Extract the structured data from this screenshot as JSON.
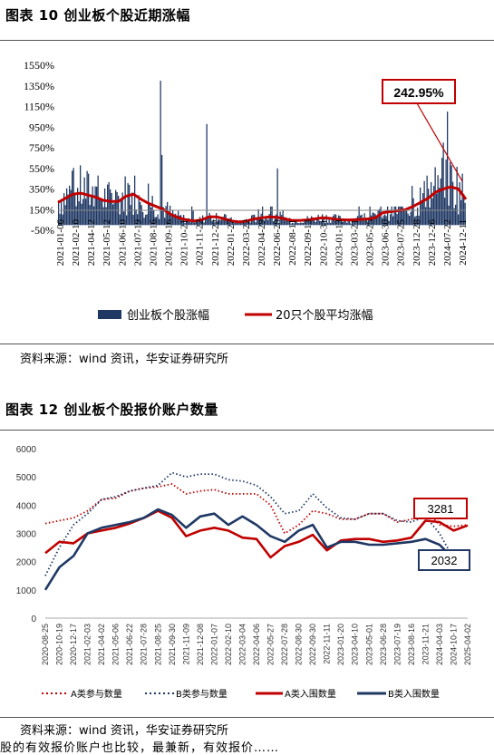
{
  "chart10": {
    "title": "图表 10 创业板个股近期涨幅",
    "source": "资料来源：wind 资讯，华安证券研究所",
    "annotation": "242.95%",
    "chart_data": {
      "type": "bar+line",
      "ylim": [
        -50,
        1550
      ],
      "yticks": [
        "1550%",
        "1350%",
        "1150%",
        "950%",
        "750%",
        "550%",
        "350%",
        "150%",
        "-50%"
      ],
      "x_ticks": [
        "2021-01-06",
        "2021-02-10",
        "2021-04-12",
        "2021-05-12",
        "2021-06-10",
        "2021-07-19",
        "2021-08-16",
        "2021-09-16",
        "2021-10-21",
        "2021-11-22",
        "2021-12-22",
        "2022-01-27",
        "2022-03-22",
        "2022-04-29",
        "2022-06-29",
        "2022-08-11",
        "2022-09-13",
        "2022-10-31",
        "2023-01-13",
        "2023-03-21",
        "2023-05-25",
        "2023-06-30",
        "2023-07-25",
        "2023-12-28",
        "2023-12-26",
        "2024-07-22",
        "2024-12-11"
      ],
      "series": [
        {
          "name": "创业板个股涨幅",
          "kind": "bar",
          "color": "#1f3864"
        },
        {
          "name": "20只个股平均涨幅",
          "kind": "line",
          "color": "#c00000"
        }
      ],
      "line_values": [
        220,
        260,
        300,
        310,
        290,
        270,
        240,
        230,
        230,
        280,
        300,
        250,
        210,
        180,
        150,
        100,
        70,
        50,
        40,
        50,
        80,
        80,
        60,
        40,
        30,
        40,
        60,
        70,
        80,
        75,
        60,
        45,
        45,
        50,
        60,
        70,
        65,
        55,
        50,
        50,
        55,
        60,
        70,
        120,
        130,
        140,
        150,
        180,
        220,
        260,
        320,
        350,
        370,
        350,
        250
      ],
      "bar_spikes": [
        {
          "pos": 0.25,
          "v": 1400
        },
        {
          "pos": 0.365,
          "v": 980
        },
        {
          "pos": 0.255,
          "v": 680
        },
        {
          "pos": 0.54,
          "v": 550
        },
        {
          "pos": 0.87,
          "v": 380
        },
        {
          "pos": 0.955,
          "v": 1100
        },
        {
          "pos": 0.948,
          "v": 800
        },
        {
          "pos": 0.905,
          "v": 480
        }
      ],
      "last_value_label": "242.95%"
    }
  },
  "chart12": {
    "title": "图表 12 创业板个股报价账户数量",
    "source": "资料来源：wind 资讯，华安证券研究所",
    "annotation_a": "3281",
    "annotation_b": "2032",
    "chart_data": {
      "type": "line",
      "ylim": [
        0,
        6000
      ],
      "yticks": [
        "6000",
        "5000",
        "4000",
        "3000",
        "2000",
        "1000",
        "0"
      ],
      "x_ticks": [
        "2020-08-25",
        "2020-10-19",
        "2020-12-17",
        "2021-02-03",
        "2021-04-02",
        "2021-05-06",
        "2021-06-22",
        "2021-07-28",
        "2021-08-25",
        "2021-09-30",
        "2021-11-09",
        "2021-12-08",
        "2022-01-07",
        "2022-02-10",
        "2022-03-04",
        "2022-04-06",
        "2022-05-27",
        "2022-07-28",
        "2022-08-30",
        "2022-09-30",
        "2022-11-11",
        "2023-01-20",
        "2023-04-10",
        "2023-05-01",
        "2023-06-28",
        "2023-07-19",
        "2023-08-16",
        "2023-11-21",
        "2024-04-03",
        "2024-10-17",
        "2025-04-02"
      ],
      "series": [
        {
          "name": "A类参与数量",
          "style": "dotted",
          "color": "#c00000",
          "values": [
            3350,
            3450,
            3550,
            3800,
            4200,
            4250,
            4500,
            4600,
            4650,
            4750,
            4400,
            4500,
            4550,
            4400,
            4400,
            4400,
            4000,
            3000,
            3300,
            3800,
            3700,
            3500,
            3500,
            3700,
            3700,
            3400,
            3500,
            3800,
            3300,
            3250,
            3300
          ]
        },
        {
          "name": "B类参与数量",
          "style": "dotted",
          "color": "#1f3864",
          "values": [
            1500,
            2500,
            3300,
            3700,
            4200,
            4300,
            4500,
            4600,
            4700,
            5150,
            5000,
            5100,
            5100,
            4900,
            4850,
            4700,
            4300,
            3700,
            3800,
            4400,
            3900,
            3550,
            3500,
            3700,
            3700,
            3450,
            3400,
            3600,
            3000,
            2100,
            2050
          ]
        },
        {
          "name": "A类入围数量",
          "style": "solid",
          "color": "#c00000",
          "values": [
            2300,
            2700,
            2650,
            3000,
            3100,
            3200,
            3350,
            3550,
            3800,
            3550,
            2900,
            3100,
            3200,
            3100,
            2850,
            2800,
            2150,
            2550,
            2700,
            2950,
            2400,
            2750,
            2800,
            2800,
            2700,
            2750,
            2850,
            3450,
            3400,
            3100,
            3281
          ]
        },
        {
          "name": "B类入围数量",
          "style": "solid",
          "color": "#1f3864",
          "values": [
            1000,
            1800,
            2200,
            3000,
            3200,
            3300,
            3400,
            3550,
            3850,
            3650,
            3200,
            3600,
            3700,
            3300,
            3600,
            3300,
            2900,
            2700,
            3100,
            3300,
            2500,
            2700,
            2700,
            2600,
            2600,
            2650,
            2700,
            2800,
            2600,
            2100,
            2032
          ]
        }
      ]
    }
  },
  "trailing_text": "股的有效报价账户也比较，最兼新，有效报价……"
}
